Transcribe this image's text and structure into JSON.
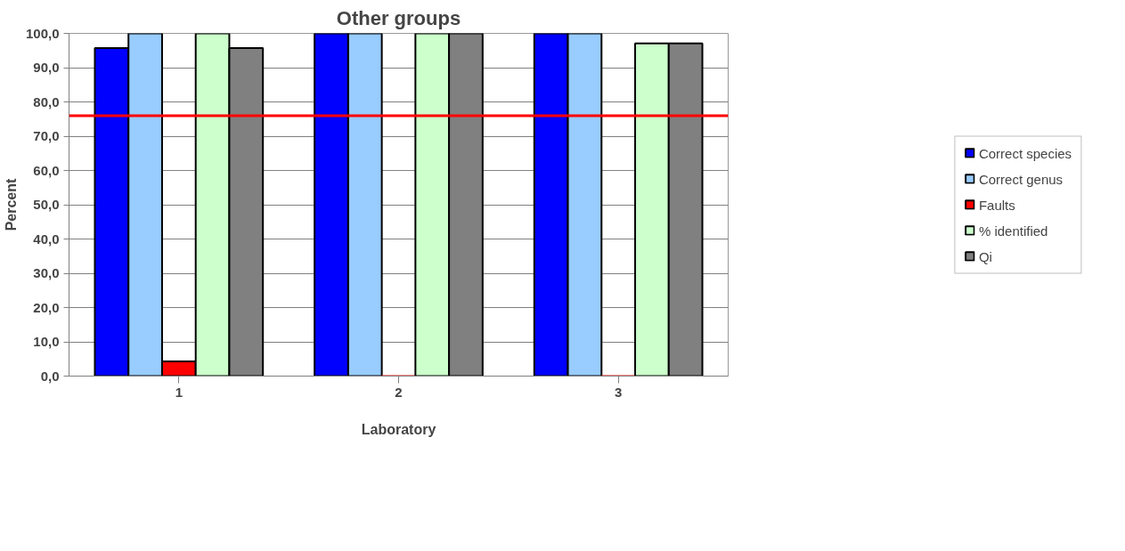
{
  "chart_data": {
    "type": "bar",
    "title": "Other groups",
    "xlabel": "Laboratory",
    "ylabel": "Percent",
    "categories": [
      "1",
      "2",
      "3"
    ],
    "series": [
      {
        "name": "Correct species",
        "color": "#0000ff",
        "values": [
          95.7,
          100,
          100
        ]
      },
      {
        "name": "Correct genus",
        "color": "#99ccff",
        "values": [
          100,
          100,
          100
        ]
      },
      {
        "name": "Faults",
        "color": "#ff0000",
        "values": [
          4.3,
          0,
          0
        ]
      },
      {
        "name": "% identified",
        "color": "#ccffcc",
        "values": [
          100,
          100,
          97.1
        ]
      },
      {
        "name": "Qi",
        "color": "#808080",
        "values": [
          95.7,
          100,
          97.1
        ]
      }
    ],
    "ylim": [
      0,
      100
    ],
    "yticks": [
      {
        "value": 0,
        "label": "0,0"
      },
      {
        "value": 10,
        "label": "10,0"
      },
      {
        "value": 20,
        "label": "20,0"
      },
      {
        "value": 30,
        "label": "30,0"
      },
      {
        "value": 40,
        "label": "40,0"
      },
      {
        "value": 50,
        "label": "50,0"
      },
      {
        "value": 60,
        "label": "60,0"
      },
      {
        "value": 70,
        "label": "70,0"
      },
      {
        "value": 80,
        "label": "80,0"
      },
      {
        "value": 90,
        "label": "90,0"
      },
      {
        "value": 100,
        "label": "100,0"
      }
    ],
    "ref_lines": [
      {
        "axis": "y",
        "value": 76,
        "color": "#ff0000"
      }
    ],
    "grid": "y",
    "legend": "right"
  }
}
